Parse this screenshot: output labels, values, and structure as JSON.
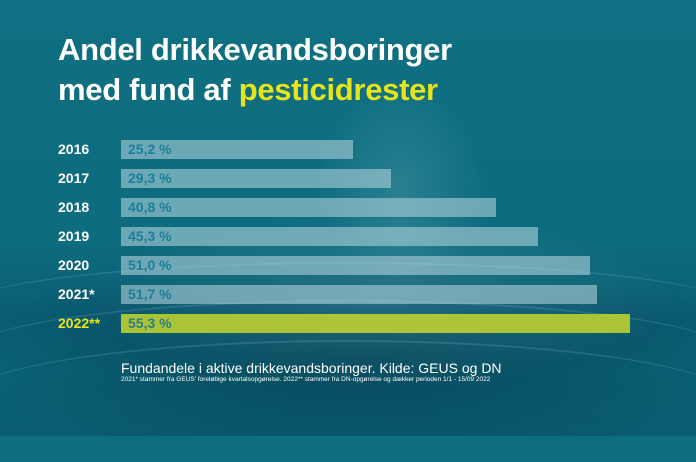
{
  "title": {
    "line1": "Andel drikkevandsboringer",
    "line2_prefix": "med fund af ",
    "line2_highlight": "pesticidrester"
  },
  "rows": [
    {
      "year": "2016",
      "value_label": "25,2 %",
      "value": 25.2
    },
    {
      "year": "2017",
      "value_label": "29,3 %",
      "value": 29.3
    },
    {
      "year": "2018",
      "value_label": "40,8 %",
      "value": 40.8
    },
    {
      "year": "2019",
      "value_label": "45,3 %",
      "value": 45.3
    },
    {
      "year": "2020",
      "value_label": "51,0 %",
      "value": 51.0
    },
    {
      "year": "2021*",
      "value_label": "51,7 %",
      "value": 51.7
    },
    {
      "year": "2022**",
      "value_label": "55,3 %",
      "value": 55.3
    }
  ],
  "caption": "Fundandele i aktive drikkevandsboringer. Kilde: GEUS og DN",
  "footnote": "2021* stammer fra GEUS' foreløbige kvartalsopgørelse.  2022** stammer fra DN-opgørelse og dækker perioden 1/1 - 15/09 2022",
  "colors": {
    "background": "#0d6e80",
    "bar": "#8fbfcb",
    "highlight_bar": "#c5d62a",
    "highlight_text": "#e8e41a",
    "value_text": "#1a7f9b"
  },
  "chart_data": {
    "type": "bar",
    "orientation": "horizontal",
    "title": "Andel drikkevandsboringer med fund af pesticidrester",
    "categories": [
      "2016",
      "2017",
      "2018",
      "2019",
      "2020",
      "2021*",
      "2022**"
    ],
    "values": [
      25.2,
      29.3,
      40.8,
      45.3,
      51.0,
      51.7,
      55.3
    ],
    "value_labels": [
      "25,2 %",
      "29,3 %",
      "40,8 %",
      "45,3 %",
      "51,0 %",
      "51,7 %",
      "55,3 %"
    ],
    "unit": "%",
    "highlighted_category": "2022**",
    "xlabel": "",
    "ylabel": "",
    "grid": false,
    "legend": null,
    "caption": "Fundandele i aktive drikkevandsboringer. Kilde: GEUS og DN",
    "annotations": [
      "2021* stammer fra GEUS' foreløbige kvartalsopgørelse.",
      "2022** stammer fra DN-opgørelse og dækker perioden 1/1 - 15/09 2022"
    ]
  }
}
